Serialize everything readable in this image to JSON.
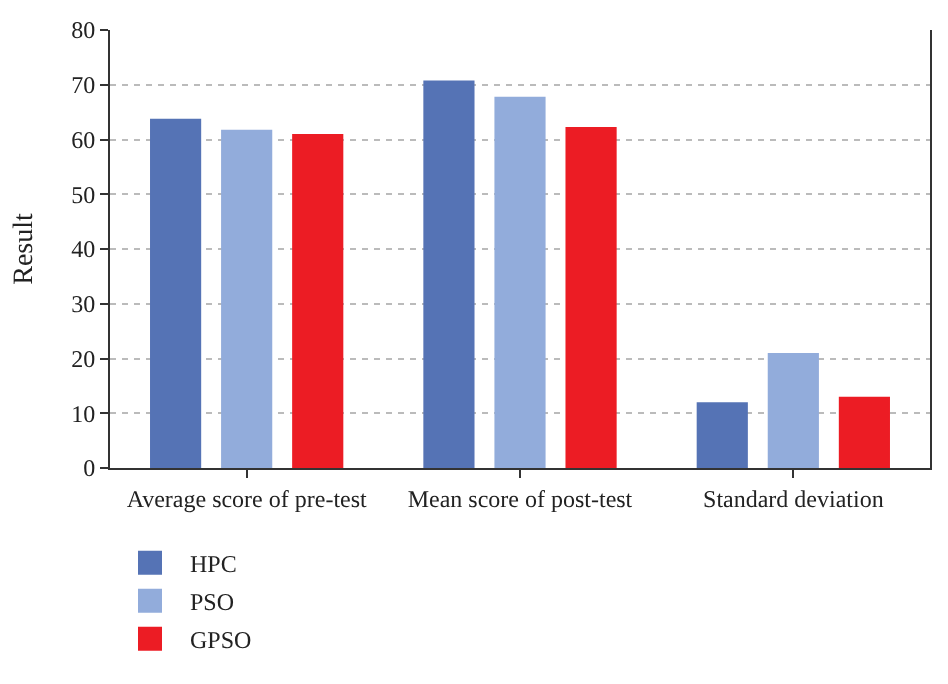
{
  "chart_data": {
    "type": "bar",
    "ylabel": "Result",
    "categories": [
      "Average score of pre-test",
      "Mean score of post-test",
      "Standard deviation"
    ],
    "series": [
      {
        "name": "HPC",
        "color": "#5573b5",
        "values": [
          63.8,
          70.8,
          12
        ]
      },
      {
        "name": "PSO",
        "color": "#92acdb",
        "values": [
          61.8,
          67.8,
          21
        ]
      },
      {
        "name": "GPSO",
        "color": "#ec1c24",
        "values": [
          61,
          62.3,
          13
        ]
      }
    ],
    "ylim": [
      0,
      80
    ],
    "yticks": [
      0,
      10,
      20,
      30,
      40,
      50,
      60,
      70,
      80
    ],
    "grid": "y",
    "legend": "bottom left"
  }
}
